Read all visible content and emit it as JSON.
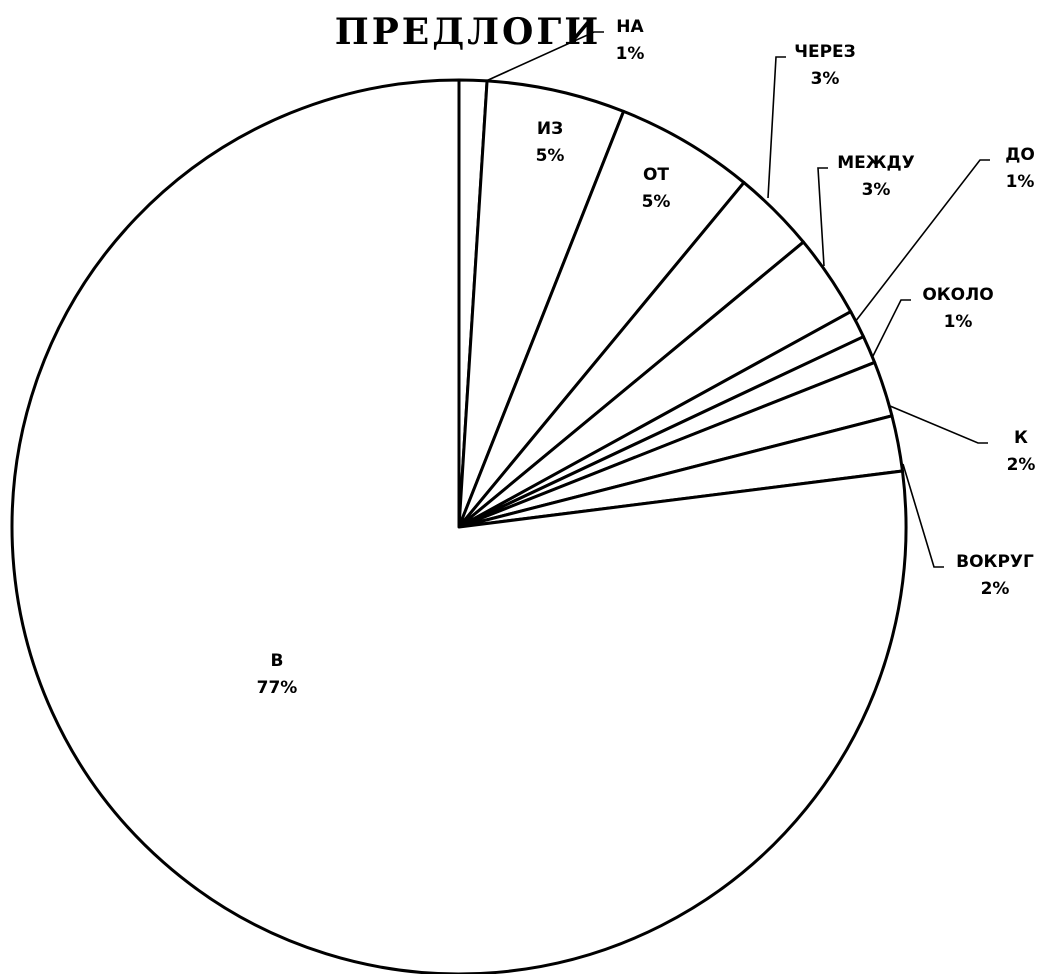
{
  "chart_data": {
    "type": "pie",
    "title": "ПРЕДЛОГИ",
    "start_angle": "top",
    "direction": "clockwise",
    "slices": [
      {
        "label": "НА",
        "value": 1,
        "value_label": "1%"
      },
      {
        "label": "ИЗ",
        "value": 5,
        "value_label": "5%"
      },
      {
        "label": "ОТ",
        "value": 5,
        "value_label": "5%"
      },
      {
        "label": "ЧЕРЕЗ",
        "value": 3,
        "value_label": "3%"
      },
      {
        "label": "МЕЖДУ",
        "value": 3,
        "value_label": "3%"
      },
      {
        "label": "ДО",
        "value": 1,
        "value_label": "1%"
      },
      {
        "label": "ОКОЛО",
        "value": 1,
        "value_label": "1%"
      },
      {
        "label": "К",
        "value": 2,
        "value_label": "2%"
      },
      {
        "label": "ВОКРУГ",
        "value": 2,
        "value_label": "2%"
      },
      {
        "label": "В",
        "value": 77,
        "value_label": "77%"
      }
    ],
    "colors": {
      "fill": "#ffffff",
      "stroke": "#000000"
    },
    "legend": "none"
  }
}
